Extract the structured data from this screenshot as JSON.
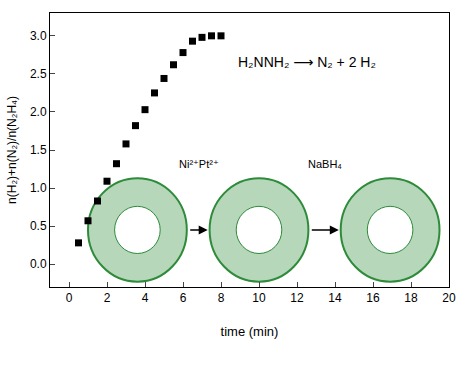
{
  "chart_data": {
    "type": "scatter",
    "x_label": "time (min)",
    "y_label": "n(H₂)+n(N₂)/n(N₂H₄)",
    "x": [
      0.5,
      1,
      1.5,
      2,
      2.5,
      3,
      3.5,
      4,
      4.5,
      5,
      5.5,
      6,
      6.5,
      7,
      7.5,
      8
    ],
    "values": [
      0.28,
      0.57,
      0.83,
      1.09,
      1.32,
      1.58,
      1.82,
      2.03,
      2.25,
      2.44,
      2.62,
      2.78,
      2.93,
      2.98,
      3.0,
      3.0
    ],
    "color": "#000000",
    "marker": "square",
    "xlim": [
      -1,
      20
    ],
    "xticks": [
      0,
      2,
      4,
      6,
      8,
      10,
      12,
      14,
      16,
      18,
      20
    ],
    "ylim": [
      -0.3,
      3.3
    ],
    "yticks": [
      {
        "value": 0,
        "label": "0.0"
      },
      0.5,
      {
        "value": 1,
        "label": "1.0"
      },
      1.5,
      {
        "value": 2,
        "label": "2.0"
      },
      2.5,
      {
        "value": 3,
        "label": "3.0"
      }
    ],
    "grid": false,
    "annotations": [
      "H₂NNH₂ ⟶ N₂ + 2 H₂",
      "Ni²⁺Pt²⁺",
      "NaBH₄"
    ]
  }
}
